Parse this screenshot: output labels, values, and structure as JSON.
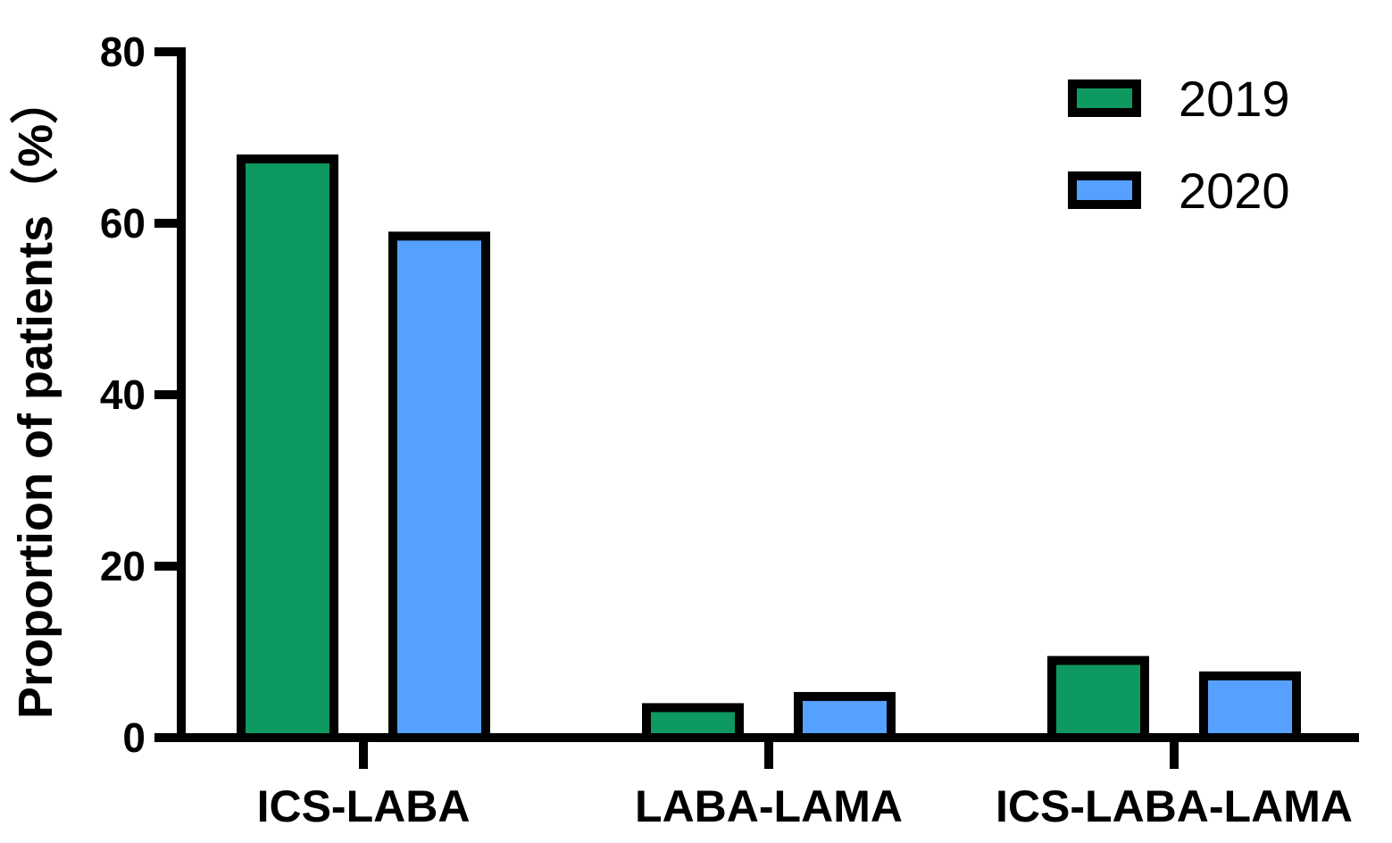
{
  "chart_data": {
    "type": "bar",
    "title": "",
    "xlabel": "",
    "ylabel": "Proportion of patients（%）",
    "ylim": [
      0,
      80
    ],
    "yticks": [
      0,
      20,
      40,
      60,
      80
    ],
    "grid": false,
    "legend_position": "top-right",
    "categories": [
      "ICS-LABA",
      "LABA-LAMA",
      "ICS-LABA-LAMA"
    ],
    "series": [
      {
        "name": "2019",
        "color": "#0d9960",
        "values": [
          67.5,
          3.5,
          9.0
        ]
      },
      {
        "name": "2020",
        "color": "#56a0ff",
        "values": [
          58.5,
          4.8,
          7.2
        ]
      }
    ]
  }
}
